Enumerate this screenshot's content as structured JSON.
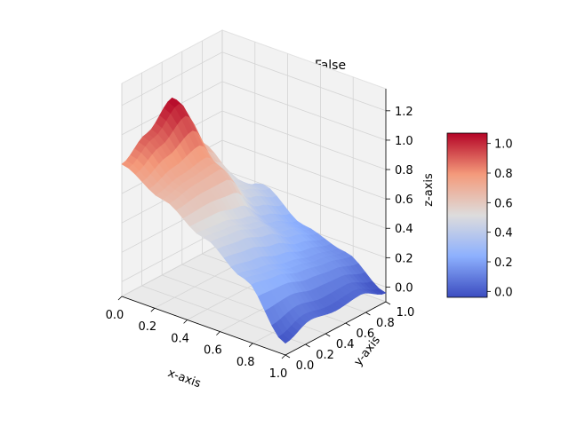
{
  "chart_data": {
    "type": "surface",
    "title": "n=4 Franke-OLS, Noise=False",
    "xlabel": "x-axis",
    "ylabel": "y-axis",
    "zlabel": "z-axis",
    "xlim": [
      0,
      1
    ],
    "ylim": [
      0,
      1
    ],
    "zlim": [
      -0.1,
      1.35
    ],
    "x_ticks": [
      "0.0",
      "0.2",
      "0.4",
      "0.6",
      "0.8",
      "1.0"
    ],
    "y_ticks": [
      "0.0",
      "0.2",
      "0.4",
      "0.6",
      "0.8",
      "1.0"
    ],
    "z_ticks": [
      "0.0",
      "0.2",
      "0.4",
      "0.6",
      "0.8",
      "1.0",
      "1.2"
    ],
    "colormap": "coolwarm",
    "colorbar": {
      "range": [
        -0.04,
        1.07
      ],
      "ticks": [
        "0.0",
        "0.2",
        "0.4",
        "0.6",
        "0.8",
        "1.0"
      ]
    },
    "grid": true,
    "surface_samples": {
      "description_of_axes": "z values sampled on a 5x5 grid, rows = y (0..1), cols = x (0..1)",
      "x": [
        0,
        0.25,
        0.5,
        0.75,
        1.0
      ],
      "y": [
        0,
        0.25,
        0.5,
        0.75,
        1.0
      ],
      "z": [
        [
          0.8,
          0.66,
          0.5,
          0.32,
          -0.02
        ],
        [
          0.92,
          0.7,
          0.48,
          0.28,
          0.05
        ],
        [
          1.07,
          0.72,
          0.42,
          0.22,
          0.02
        ],
        [
          0.7,
          0.48,
          0.3,
          0.18,
          0.04
        ],
        [
          0.25,
          0.4,
          0.22,
          0.14,
          -0.04
        ]
      ]
    }
  }
}
